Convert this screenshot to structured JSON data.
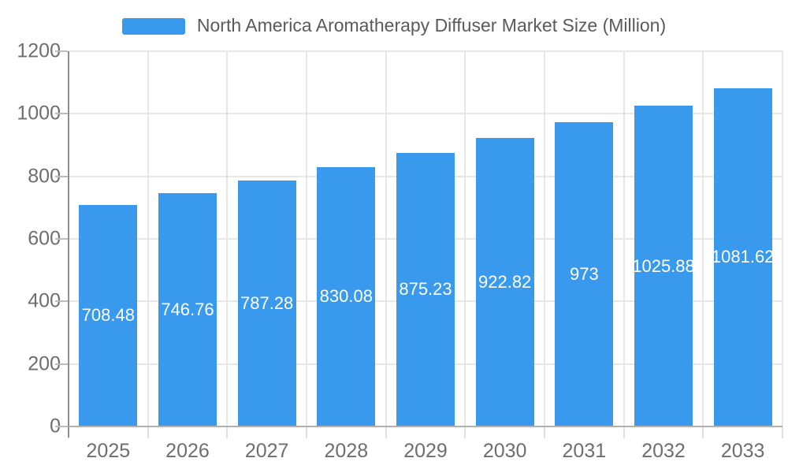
{
  "legend": {
    "label": "North America Aromatherapy Diffuser Market Size (Million)"
  },
  "chart_data": {
    "type": "bar",
    "title": "North America Aromatherapy Diffuser Market Size (Million)",
    "series_name": "North America Aromatherapy Diffuser Market Size (Million)",
    "categories": [
      "2025",
      "2026",
      "2027",
      "2028",
      "2029",
      "2030",
      "2031",
      "2032",
      "2033"
    ],
    "values": [
      708.48,
      746.76,
      787.28,
      830.08,
      875.23,
      922.82,
      973,
      1025.88,
      1081.62
    ],
    "value_labels": [
      "708.48",
      "746.76",
      "787.28",
      "830.08",
      "875.23",
      "922.82",
      "973",
      "1025.88",
      "1081.62"
    ],
    "xlabel": "",
    "ylabel": "",
    "ylim": [
      0,
      1200
    ],
    "y_ticks": [
      0,
      200,
      400,
      600,
      800,
      1000,
      1200
    ],
    "grid": true,
    "legend_position": "top-center",
    "value_label_position": "inside-center"
  },
  "colors": {
    "bar": "#3999EC",
    "bar_label": "#FFFFFF",
    "axis_text": "#6E6E6E",
    "legend_text": "#5A5A5A",
    "grid_line": "#E7E7E7",
    "x_axis_line": "#B0B0B0",
    "y_axis_line": "#8F8F8F",
    "y_tick": "#BDBDBD",
    "x_tick": "#E0E0E0"
  }
}
